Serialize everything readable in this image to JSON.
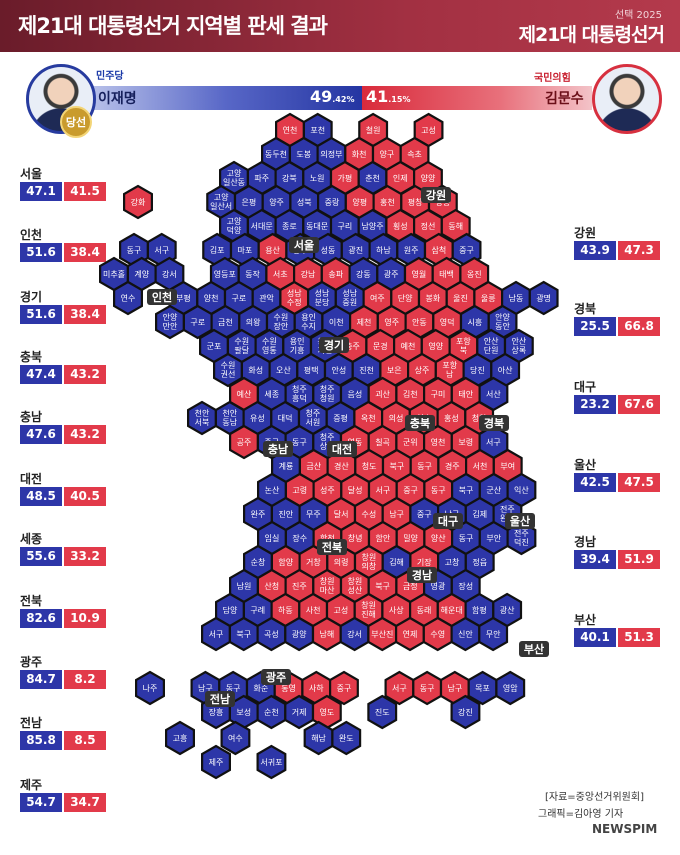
{
  "header": {
    "title": "제21대 대통령선거 지역별 판세 결과",
    "brand_small": "선택 2025",
    "brand_big": "제21대 대통령선거"
  },
  "result": {
    "winner_badge": "당선",
    "left": {
      "party": "민주당",
      "name": "이재명",
      "pct_main": "49",
      "pct_decimal": ".42%",
      "color": "#2435a2"
    },
    "right": {
      "party": "국민의힘",
      "name": "김문수",
      "pct_main": "41",
      "pct_decimal": ".15%",
      "color": "#d92a3b"
    }
  },
  "regional_results": [
    {
      "region": "서울",
      "lee": "47.1",
      "kim": "41.5"
    },
    {
      "region": "인천",
      "lee": "51.6",
      "kim": "38.4"
    },
    {
      "region": "경기",
      "lee": "51.6",
      "kim": "38.4"
    },
    {
      "region": "충북",
      "lee": "47.4",
      "kim": "43.2"
    },
    {
      "region": "충남",
      "lee": "47.6",
      "kim": "43.2"
    },
    {
      "region": "대전",
      "lee": "48.5",
      "kim": "40.5"
    },
    {
      "region": "세종",
      "lee": "55.6",
      "kim": "33.2"
    },
    {
      "region": "전북",
      "lee": "82.6",
      "kim": "10.9"
    },
    {
      "region": "광주",
      "lee": "84.7",
      "kim": "8.2"
    },
    {
      "region": "전남",
      "lee": "85.8",
      "kim": "8.5"
    },
    {
      "region": "제주",
      "lee": "54.7",
      "kim": "34.7"
    },
    {
      "region": "강원",
      "lee": "43.9",
      "kim": "47.3"
    },
    {
      "region": "경북",
      "lee": "25.5",
      "kim": "66.8"
    },
    {
      "region": "대구",
      "lee": "23.2",
      "kim": "67.6"
    },
    {
      "region": "울산",
      "lee": "42.5",
      "kim": "47.5"
    },
    {
      "region": "경남",
      "lee": "39.4",
      "kim": "51.9"
    },
    {
      "region": "부산",
      "lee": "40.1",
      "kim": "51.3"
    }
  ],
  "map": {
    "colors": {
      "lee": "#2d36a8",
      "kim": "#e23a4a"
    },
    "region_labels": [
      "강원",
      "서울",
      "인천",
      "경기",
      "충북",
      "충남",
      "대전",
      "경북",
      "대구",
      "울산",
      "전북",
      "경남",
      "부산",
      "광주",
      "전남"
    ],
    "cells": [
      {
        "name": "연천",
        "w": "kim"
      },
      {
        "name": "포천",
        "w": "lee"
      },
      {
        "name": "철원",
        "w": "kim"
      },
      {
        "name": "고성",
        "w": "kim"
      },
      {
        "name": "동두천",
        "w": "lee"
      },
      {
        "name": "도봉",
        "w": "lee"
      },
      {
        "name": "의정부",
        "w": "lee"
      },
      {
        "name": "화천",
        "w": "kim"
      },
      {
        "name": "양구",
        "w": "kim"
      },
      {
        "name": "속초",
        "w": "kim"
      },
      {
        "name": "고양 일산동",
        "w": "lee"
      },
      {
        "name": "파주",
        "w": "lee"
      },
      {
        "name": "강북",
        "w": "lee"
      },
      {
        "name": "노원",
        "w": "lee"
      },
      {
        "name": "가평",
        "w": "kim"
      },
      {
        "name": "춘천",
        "w": "lee"
      },
      {
        "name": "인제",
        "w": "kim"
      },
      {
        "name": "양양",
        "w": "kim"
      },
      {
        "name": "강화",
        "w": "kim"
      },
      {
        "name": "고양 일산서",
        "w": "lee"
      },
      {
        "name": "은평",
        "w": "lee"
      },
      {
        "name": "양주",
        "w": "lee"
      },
      {
        "name": "성북",
        "w": "lee"
      },
      {
        "name": "중랑",
        "w": "lee"
      },
      {
        "name": "양평",
        "w": "kim"
      },
      {
        "name": "홍천",
        "w": "kim"
      },
      {
        "name": "평창",
        "w": "kim"
      },
      {
        "name": "강릉",
        "w": "kim"
      },
      {
        "name": "고양 덕양",
        "w": "lee"
      },
      {
        "name": "서대문",
        "w": "lee"
      },
      {
        "name": "종로",
        "w": "lee"
      },
      {
        "name": "동대문",
        "w": "lee"
      },
      {
        "name": "구리",
        "w": "lee"
      },
      {
        "name": "남양주",
        "w": "lee"
      },
      {
        "name": "횡성",
        "w": "kim"
      },
      {
        "name": "정선",
        "w": "kim"
      },
      {
        "name": "동해",
        "w": "kim"
      },
      {
        "name": "동구",
        "w": "lee"
      },
      {
        "name": "서구",
        "w": "lee"
      },
      {
        "name": "김포",
        "w": "lee"
      },
      {
        "name": "마포",
        "w": "lee"
      },
      {
        "name": "용산",
        "w": "kim"
      },
      {
        "name": "중구",
        "w": "lee"
      },
      {
        "name": "성동",
        "w": "lee"
      },
      {
        "name": "광진",
        "w": "lee"
      },
      {
        "name": "하남",
        "w": "lee"
      },
      {
        "name": "원주",
        "w": "lee"
      },
      {
        "name": "삼척",
        "w": "kim"
      },
      {
        "name": "중구",
        "w": "lee"
      },
      {
        "name": "미추홀",
        "w": "lee"
      },
      {
        "name": "계양",
        "w": "lee"
      },
      {
        "name": "강서",
        "w": "lee"
      },
      {
        "name": "영등포",
        "w": "lee"
      },
      {
        "name": "동작",
        "w": "lee"
      },
      {
        "name": "서초",
        "w": "kim"
      },
      {
        "name": "강남",
        "w": "kim"
      },
      {
        "name": "송파",
        "w": "kim"
      },
      {
        "name": "강동",
        "w": "lee"
      },
      {
        "name": "광주",
        "w": "lee"
      },
      {
        "name": "영월",
        "w": "kim"
      },
      {
        "name": "태백",
        "w": "kim"
      },
      {
        "name": "옹진",
        "w": "kim"
      },
      {
        "name": "연수",
        "w": "lee"
      },
      {
        "name": "부평",
        "w": "lee"
      },
      {
        "name": "양천",
        "w": "lee"
      },
      {
        "name": "구로",
        "w": "lee"
      },
      {
        "name": "관악",
        "w": "lee"
      },
      {
        "name": "성남 수정",
        "w": "kim"
      },
      {
        "name": "성남 분당",
        "w": "lee"
      },
      {
        "name": "성남 중원",
        "w": "lee"
      },
      {
        "name": "여주",
        "w": "kim"
      },
      {
        "name": "단양",
        "w": "kim"
      },
      {
        "name": "봉화",
        "w": "kim"
      },
      {
        "name": "울진",
        "w": "kim"
      },
      {
        "name": "울릉",
        "w": "kim"
      },
      {
        "name": "남동",
        "w": "lee"
      },
      {
        "name": "광명",
        "w": "lee"
      },
      {
        "name": "안양 만안",
        "w": "lee"
      },
      {
        "name": "구로",
        "w": "lee"
      },
      {
        "name": "금천",
        "w": "lee"
      },
      {
        "name": "의왕",
        "w": "lee"
      },
      {
        "name": "수원 장안",
        "w": "lee"
      },
      {
        "name": "용인 수지",
        "w": "lee"
      },
      {
        "name": "이천",
        "w": "lee"
      },
      {
        "name": "제천",
        "w": "kim"
      },
      {
        "name": "영주",
        "w": "kim"
      },
      {
        "name": "안동",
        "w": "kim"
      },
      {
        "name": "영덕",
        "w": "kim"
      },
      {
        "name": "시흥",
        "w": "lee"
      },
      {
        "name": "안양 동안",
        "w": "lee"
      },
      {
        "name": "군포",
        "w": "lee"
      },
      {
        "name": "수원 팔달",
        "w": "lee"
      },
      {
        "name": "수원 영통",
        "w": "lee"
      },
      {
        "name": "용인 기흥",
        "w": "lee"
      },
      {
        "name": "용인 처인",
        "w": "lee"
      },
      {
        "name": "충주",
        "w": "kim"
      },
      {
        "name": "문경",
        "w": "kim"
      },
      {
        "name": "예천",
        "w": "kim"
      },
      {
        "name": "영양",
        "w": "kim"
      },
      {
        "name": "포항 북",
        "w": "kim"
      },
      {
        "name": "안산 단원",
        "w": "lee"
      },
      {
        "name": "안산 상록",
        "w": "lee"
      },
      {
        "name": "수원 권선",
        "w": "lee"
      },
      {
        "name": "화성",
        "w": "lee"
      },
      {
        "name": "오산",
        "w": "lee"
      },
      {
        "name": "평택",
        "w": "lee"
      },
      {
        "name": "안성",
        "w": "lee"
      },
      {
        "name": "진천",
        "w": "lee"
      },
      {
        "name": "보은",
        "w": "kim"
      },
      {
        "name": "상주",
        "w": "kim"
      },
      {
        "name": "포항 남",
        "w": "kim"
      },
      {
        "name": "당진",
        "w": "lee"
      },
      {
        "name": "아산",
        "w": "lee"
      },
      {
        "name": "예산",
        "w": "kim"
      },
      {
        "name": "세종",
        "w": "lee"
      },
      {
        "name": "청주 흥덕",
        "w": "lee"
      },
      {
        "name": "청주 청원",
        "w": "lee"
      },
      {
        "name": "음성",
        "w": "lee"
      },
      {
        "name": "괴산",
        "w": "kim"
      },
      {
        "name": "김천",
        "w": "kim"
      },
      {
        "name": "구미",
        "w": "kim"
      },
      {
        "name": "태안",
        "w": "kim"
      },
      {
        "name": "서산",
        "w": "lee"
      },
      {
        "name": "천안 서북",
        "w": "lee"
      },
      {
        "name": "천안 동남",
        "w": "lee"
      },
      {
        "name": "유성",
        "w": "lee"
      },
      {
        "name": "대덕",
        "w": "lee"
      },
      {
        "name": "청주 서원",
        "w": "lee"
      },
      {
        "name": "증평",
        "w": "lee"
      },
      {
        "name": "옥천",
        "w": "kim"
      },
      {
        "name": "의성",
        "w": "kim"
      },
      {
        "name": "청송",
        "w": "kim"
      },
      {
        "name": "홍성",
        "w": "kim"
      },
      {
        "name": "청양",
        "w": "kim"
      },
      {
        "name": "공주",
        "w": "kim"
      },
      {
        "name": "중구",
        "w": "lee"
      },
      {
        "name": "동구",
        "w": "lee"
      },
      {
        "name": "청주 상당",
        "w": "lee"
      },
      {
        "name": "영동",
        "w": "kim"
      },
      {
        "name": "칠곡",
        "w": "kim"
      },
      {
        "name": "군위",
        "w": "kim"
      },
      {
        "name": "영천",
        "w": "kim"
      },
      {
        "name": "보령",
        "w": "kim"
      },
      {
        "name": "서구",
        "w": "lee"
      },
      {
        "name": "계룡",
        "w": "lee"
      },
      {
        "name": "금산",
        "w": "kim"
      },
      {
        "name": "경산",
        "w": "kim"
      },
      {
        "name": "청도",
        "w": "kim"
      },
      {
        "name": "북구",
        "w": "kim"
      },
      {
        "name": "동구",
        "w": "kim"
      },
      {
        "name": "경주",
        "w": "kim"
      },
      {
        "name": "서천",
        "w": "kim"
      },
      {
        "name": "부여",
        "w": "kim"
      },
      {
        "name": "논산",
        "w": "lee"
      },
      {
        "name": "고령",
        "w": "kim"
      },
      {
        "name": "성주",
        "w": "kim"
      },
      {
        "name": "달성",
        "w": "kim"
      },
      {
        "name": "서구",
        "w": "kim"
      },
      {
        "name": "중구",
        "w": "kim"
      },
      {
        "name": "동구",
        "w": "kim"
      },
      {
        "name": "북구",
        "w": "lee"
      },
      {
        "name": "군산",
        "w": "lee"
      },
      {
        "name": "익산",
        "w": "lee"
      },
      {
        "name": "완주",
        "w": "lee"
      },
      {
        "name": "진안",
        "w": "lee"
      },
      {
        "name": "무주",
        "w": "lee"
      },
      {
        "name": "달서",
        "w": "kim"
      },
      {
        "name": "수성",
        "w": "kim"
      },
      {
        "name": "남구",
        "w": "kim"
      },
      {
        "name": "중구",
        "w": "lee"
      },
      {
        "name": "남구",
        "w": "lee"
      },
      {
        "name": "김제",
        "w": "lee"
      },
      {
        "name": "전주 완산",
        "w": "lee"
      },
      {
        "name": "임실",
        "w": "lee"
      },
      {
        "name": "장수",
        "w": "lee"
      },
      {
        "name": "합천",
        "w": "kim"
      },
      {
        "name": "창녕",
        "w": "kim"
      },
      {
        "name": "함안",
        "w": "kim"
      },
      {
        "name": "밀양",
        "w": "kim"
      },
      {
        "name": "양산",
        "w": "kim"
      },
      {
        "name": "동구",
        "w": "lee"
      },
      {
        "name": "부안",
        "w": "lee"
      },
      {
        "name": "전주 덕진",
        "w": "lee"
      },
      {
        "name": "순창",
        "w": "lee"
      },
      {
        "name": "함양",
        "w": "kim"
      },
      {
        "name": "거창",
        "w": "kim"
      },
      {
        "name": "의령",
        "w": "kim"
      },
      {
        "name": "창원 의창",
        "w": "kim"
      },
      {
        "name": "김해",
        "w": "lee"
      },
      {
        "name": "기장",
        "w": "kim"
      },
      {
        "name": "고창",
        "w": "lee"
      },
      {
        "name": "정읍",
        "w": "lee"
      },
      {
        "name": "남원",
        "w": "lee"
      },
      {
        "name": "산청",
        "w": "kim"
      },
      {
        "name": "진주",
        "w": "kim"
      },
      {
        "name": "창원 마산",
        "w": "kim"
      },
      {
        "name": "창원 성산",
        "w": "kim"
      },
      {
        "name": "북구",
        "w": "kim"
      },
      {
        "name": "금정",
        "w": "kim"
      },
      {
        "name": "영광",
        "w": "lee"
      },
      {
        "name": "장성",
        "w": "lee"
      },
      {
        "name": "담양",
        "w": "lee"
      },
      {
        "name": "구례",
        "w": "lee"
      },
      {
        "name": "하동",
        "w": "kim"
      },
      {
        "name": "사천",
        "w": "kim"
      },
      {
        "name": "고성",
        "w": "kim"
      },
      {
        "name": "창원 진해",
        "w": "kim"
      },
      {
        "name": "사상",
        "w": "kim"
      },
      {
        "name": "동래",
        "w": "kim"
      },
      {
        "name": "해운대",
        "w": "kim"
      },
      {
        "name": "함평",
        "w": "lee"
      },
      {
        "name": "광산",
        "w": "lee"
      },
      {
        "name": "서구",
        "w": "lee"
      },
      {
        "name": "북구",
        "w": "lee"
      },
      {
        "name": "곡성",
        "w": "lee"
      },
      {
        "name": "광양",
        "w": "lee"
      },
      {
        "name": "남해",
        "w": "kim"
      },
      {
        "name": "강서",
        "w": "lee"
      },
      {
        "name": "부산진",
        "w": "kim"
      },
      {
        "name": "연제",
        "w": "kim"
      },
      {
        "name": "수영",
        "w": "kim"
      },
      {
        "name": "신안",
        "w": "lee"
      },
      {
        "name": "무안",
        "w": "lee"
      },
      {
        "name": "나주",
        "w": "lee"
      },
      {
        "name": "남구",
        "w": "lee"
      },
      {
        "name": "동구",
        "w": "lee"
      },
      {
        "name": "화순",
        "w": "lee"
      },
      {
        "name": "통영",
        "w": "kim"
      },
      {
        "name": "사하",
        "w": "kim"
      },
      {
        "name": "중구",
        "w": "kim"
      },
      {
        "name": "서구",
        "w": "kim"
      },
      {
        "name": "동구",
        "w": "kim"
      },
      {
        "name": "남구",
        "w": "kim"
      },
      {
        "name": "목포",
        "w": "lee"
      },
      {
        "name": "영암",
        "w": "lee"
      },
      {
        "name": "장흥",
        "w": "lee"
      },
      {
        "name": "보성",
        "w": "lee"
      },
      {
        "name": "순천",
        "w": "lee"
      },
      {
        "name": "거제",
        "w": "lee"
      },
      {
        "name": "영도",
        "w": "kim"
      },
      {
        "name": "진도",
        "w": "lee"
      },
      {
        "name": "강진",
        "w": "lee"
      },
      {
        "name": "고흥",
        "w": "lee"
      },
      {
        "name": "여수",
        "w": "lee"
      },
      {
        "name": "해남",
        "w": "lee"
      },
      {
        "name": "완도",
        "w": "lee"
      },
      {
        "name": "제주",
        "w": "lee"
      },
      {
        "name": "서귀포",
        "w": "lee"
      }
    ]
  },
  "source": "[자료=중앙선거위원회]",
  "credit": "그래픽=김아영 기자",
  "logo": "NEWSPIM"
}
